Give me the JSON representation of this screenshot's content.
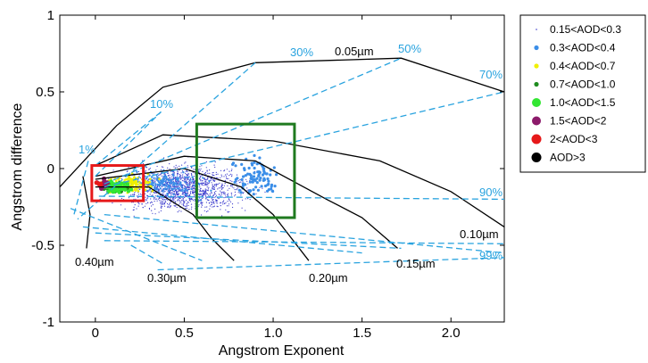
{
  "chart_data": {
    "type": "scatter",
    "title": "",
    "xlabel": "Angstrom Exponent",
    "ylabel": "Angstrom difference",
    "xlim": [
      -0.2,
      2.3
    ],
    "ylim": [
      -1,
      1
    ],
    "x_ticks": [
      "0",
      "0.5",
      "1.0",
      "1.5",
      "2.0"
    ],
    "x_tick_values": [
      0,
      0.5,
      1.0,
      1.5,
      2.0
    ],
    "y_ticks": [
      "1",
      "0.5",
      "0",
      "-0.5",
      "-1"
    ],
    "y_tick_values": [
      1,
      0.5,
      0,
      -0.5,
      -1
    ],
    "legend_placement": "outside-right",
    "series": [
      {
        "name": "0.15<AOD<0.3",
        "color": "#3a3acc",
        "marker_size": "tiny"
      },
      {
        "name": "0.3<AOD<0.4",
        "color": "#3b8ee8",
        "marker_size": "small"
      },
      {
        "name": "0.4<AOD<0.7",
        "color": "#f0f000",
        "marker_size": "small"
      },
      {
        "name": "0.7<AOD<1.0",
        "color": "#1f8c1f",
        "marker_size": "small"
      },
      {
        "name": "1.0<AOD<1.5",
        "color": "#33e633",
        "marker_size": "medium"
      },
      {
        "name": "1.5<AOD<2",
        "color": "#8c1a6a",
        "marker_size": "medium"
      },
      {
        "name": "2<AOD<3",
        "color": "#e6191a",
        "marker_size": "medium"
      },
      {
        "name": "AOD>3",
        "color": "#000000",
        "marker_size": "medium"
      }
    ],
    "fine_mode_radius_curves": [
      {
        "label": "0.05µm",
        "points": [
          [
            -0.2,
            -0.12
          ],
          [
            0.12,
            0.28
          ],
          [
            0.38,
            0.53
          ],
          [
            0.9,
            0.69
          ],
          [
            1.72,
            0.72
          ],
          [
            2.3,
            0.5
          ]
        ]
      },
      {
        "label": "0.10µm",
        "points": [
          [
            0.0,
            0.02
          ],
          [
            0.38,
            0.22
          ],
          [
            1.0,
            0.18
          ],
          [
            1.6,
            0.05
          ],
          [
            2.0,
            -0.15
          ],
          [
            2.3,
            -0.38
          ]
        ]
      },
      {
        "label": "0.15µm",
        "points": [
          [
            0.0,
            -0.05
          ],
          [
            0.5,
            0.08
          ],
          [
            0.9,
            0.05
          ],
          [
            1.3,
            -0.2
          ],
          [
            1.5,
            -0.32
          ],
          [
            1.7,
            -0.52
          ]
        ]
      },
      {
        "label": "0.20µm",
        "points": [
          [
            0.0,
            -0.07
          ],
          [
            0.5,
            0.0
          ],
          [
            0.82,
            -0.12
          ],
          [
            1.0,
            -0.3
          ],
          [
            1.2,
            -0.6
          ]
        ]
      },
      {
        "label": "0.30µm",
        "points": [
          [
            0.0,
            -0.12
          ],
          [
            0.3,
            -0.12
          ],
          [
            0.55,
            -0.3
          ],
          [
            0.65,
            -0.45
          ],
          [
            0.78,
            -0.6
          ]
        ]
      },
      {
        "label": "0.40µm",
        "points": [
          [
            -0.07,
            -0.05
          ],
          [
            -0.03,
            -0.3
          ],
          [
            -0.05,
            -0.52
          ]
        ]
      }
    ],
    "fine_mode_fraction_curves": [
      {
        "label": "1%",
        "points": [
          [
            -0.04,
            0.05
          ],
          [
            -0.12,
            -0.3
          ],
          [
            0.2,
            -0.5
          ],
          [
            0.38,
            -0.62
          ]
        ]
      },
      {
        "label": "10%",
        "points": [
          [
            0.0,
            0.02
          ],
          [
            0.37,
            0.37
          ],
          [
            -0.14,
            -0.26
          ],
          [
            0.6,
            -0.6
          ]
        ]
      },
      {
        "label": "30%",
        "points": [
          [
            0.0,
            -0.05
          ],
          [
            0.37,
            0.37
          ],
          [
            0.9,
            0.69
          ],
          [
            -0.1,
            -0.33
          ],
          [
            1.2,
            -0.62
          ]
        ]
      },
      {
        "label": "50%",
        "points": [
          [
            0.05,
            -0.1
          ],
          [
            1.72,
            0.72
          ],
          [
            -0.07,
            -0.38
          ],
          [
            1.5,
            -0.55
          ]
        ]
      },
      {
        "label": "70%",
        "points": [
          [
            0.05,
            -0.12
          ],
          [
            2.3,
            0.5
          ],
          [
            0.0,
            -0.42
          ],
          [
            1.72,
            -0.52
          ]
        ]
      },
      {
        "label": "90%",
        "points": [
          [
            0.02,
            -0.18
          ],
          [
            2.3,
            -0.2
          ],
          [
            0.05,
            -0.47
          ],
          [
            2.3,
            -0.49
          ]
        ]
      },
      {
        "label": "99%",
        "points": [
          [
            0.05,
            -0.3
          ],
          [
            2.3,
            -0.55
          ],
          [
            0.35,
            -0.66
          ],
          [
            2.3,
            -0.58
          ]
        ]
      }
    ],
    "boxes": [
      {
        "color": "#e6191a",
        "x": [
          -0.02,
          0.27
        ],
        "y": [
          -0.21,
          0.02
        ]
      },
      {
        "color": "#1f7a1f",
        "x": [
          0.57,
          1.12
        ],
        "y": [
          -0.32,
          0.29
        ]
      }
    ],
    "fm_labels": [
      {
        "text": "0.05µm"
      },
      {
        "text": "0.10µm"
      },
      {
        "text": "0.15µm"
      },
      {
        "text": "0.20µm"
      },
      {
        "text": "0.30µm"
      },
      {
        "text": "0.40µm"
      }
    ],
    "eta_labels": [
      {
        "text": "1%"
      },
      {
        "text": "10%"
      },
      {
        "text": "30%"
      },
      {
        "text": "50%"
      },
      {
        "text": "70%"
      },
      {
        "text": "90%"
      },
      {
        "text": "99%"
      }
    ]
  }
}
